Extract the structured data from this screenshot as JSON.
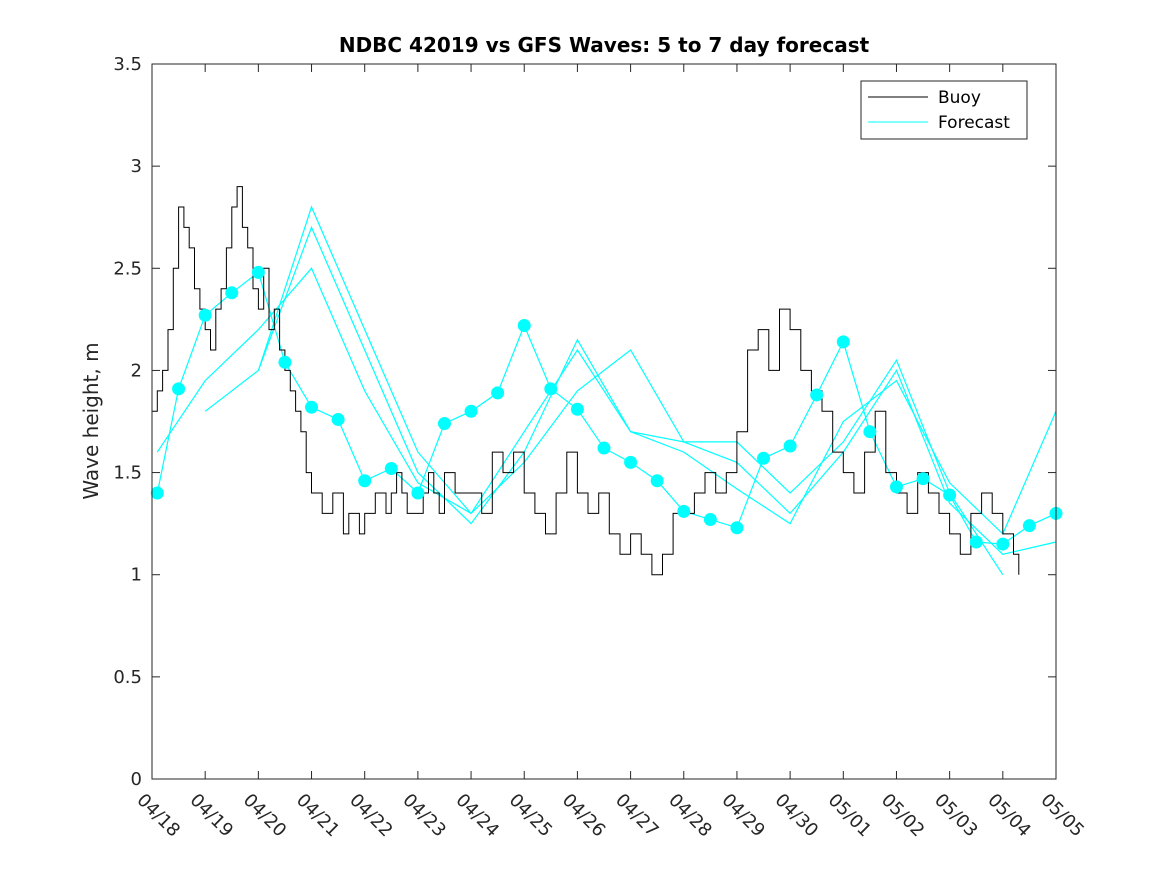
{
  "chart_data": {
    "type": "line",
    "title": "NDBC 42019 vs GFS Waves: 5 to 7 day forecast",
    "xlabel": "",
    "ylabel": "Wave height, m",
    "xlim": [
      0,
      17
    ],
    "ylim": [
      0,
      3.5
    ],
    "x_ticks": [
      "04/18",
      "04/19",
      "04/20",
      "04/21",
      "04/22",
      "04/23",
      "04/24",
      "04/25",
      "04/26",
      "04/27",
      "04/28",
      "04/29",
      "04/30",
      "05/01",
      "05/02",
      "05/03",
      "05/04",
      "05/05"
    ],
    "y_ticks": [
      0,
      0.5,
      1,
      1.5,
      2,
      2.5,
      3,
      3.5
    ],
    "y_tick_labels": [
      "0",
      "0.5",
      "1",
      "1.5",
      "2",
      "2.5",
      "3",
      "3.5"
    ],
    "grid": false,
    "legend": {
      "placement": "top-right",
      "entries": [
        "Buoy",
        "Forecast"
      ]
    },
    "colors": {
      "buoy": "#000000",
      "forecast": "#00ffff",
      "markers": "#00ffff"
    },
    "series": [
      {
        "name": "Buoy",
        "x": [
          0,
          0.1,
          0.2,
          0.3,
          0.4,
          0.5,
          0.6,
          0.7,
          0.8,
          0.9,
          1.0,
          1.1,
          1.2,
          1.3,
          1.4,
          1.5,
          1.6,
          1.7,
          1.8,
          1.9,
          2.0,
          2.1,
          2.2,
          2.3,
          2.4,
          2.5,
          2.6,
          2.7,
          2.8,
          2.9,
          3.0,
          3.1,
          3.2,
          3.3,
          3.4,
          3.5,
          3.6,
          3.7,
          3.8,
          3.9,
          4.0,
          4.1,
          4.2,
          4.3,
          4.4,
          4.5,
          4.6,
          4.7,
          4.8,
          4.9,
          5.0,
          5.1,
          5.2,
          5.3,
          5.4,
          5.5,
          5.6,
          5.7,
          5.8,
          5.9,
          6.0,
          6.2,
          6.4,
          6.6,
          6.8,
          7.0,
          7.2,
          7.4,
          7.6,
          7.8,
          8.0,
          8.2,
          8.4,
          8.6,
          8.8,
          9.0,
          9.2,
          9.4,
          9.6,
          9.8,
          10.0,
          10.2,
          10.4,
          10.6,
          10.8,
          11.0,
          11.2,
          11.4,
          11.6,
          11.8,
          12.0,
          12.2,
          12.4,
          12.6,
          12.8,
          13.0,
          13.2,
          13.4,
          13.6,
          13.8,
          14.0,
          14.2,
          14.4,
          14.6,
          14.8,
          15.0,
          15.2,
          15.4,
          15.6,
          15.8,
          16.0,
          16.2,
          16.3
        ],
        "values": [
          1.8,
          1.9,
          2.0,
          2.2,
          2.5,
          2.8,
          2.7,
          2.6,
          2.4,
          2.3,
          2.2,
          2.1,
          2.3,
          2.4,
          2.6,
          2.8,
          2.9,
          2.7,
          2.6,
          2.4,
          2.3,
          2.5,
          2.2,
          2.3,
          2.1,
          2.0,
          1.9,
          1.8,
          1.7,
          1.5,
          1.4,
          1.4,
          1.3,
          1.3,
          1.4,
          1.4,
          1.2,
          1.3,
          1.3,
          1.2,
          1.3,
          1.3,
          1.4,
          1.4,
          1.3,
          1.4,
          1.5,
          1.4,
          1.3,
          1.3,
          1.3,
          1.4,
          1.5,
          1.4,
          1.3,
          1.5,
          1.5,
          1.4,
          1.4,
          1.4,
          1.4,
          1.3,
          1.6,
          1.5,
          1.6,
          1.4,
          1.3,
          1.2,
          1.4,
          1.6,
          1.4,
          1.3,
          1.4,
          1.2,
          1.1,
          1.2,
          1.1,
          1.0,
          1.1,
          1.3,
          1.3,
          1.4,
          1.5,
          1.4,
          1.5,
          1.7,
          2.1,
          2.2,
          2.0,
          2.3,
          2.2,
          2.0,
          1.9,
          1.8,
          1.6,
          1.5,
          1.4,
          1.6,
          1.8,
          1.5,
          1.4,
          1.3,
          1.5,
          1.4,
          1.3,
          1.2,
          1.1,
          1.3,
          1.4,
          1.3,
          1.2,
          1.1,
          1.0
        ]
      },
      {
        "name": "Forecast",
        "x": [
          0.1,
          0.5,
          1.0,
          1.5,
          2.0,
          2.5,
          3.0,
          3.5,
          4.0,
          4.5,
          5.0,
          5.5,
          6.0,
          6.5,
          7.0,
          7.5,
          8.0,
          8.5,
          9.0,
          9.5,
          10.0,
          10.5,
          11.0,
          11.5,
          12.0,
          12.5,
          13.0,
          13.5,
          14.0,
          14.5,
          15.0,
          15.5,
          16.0,
          16.5,
          17.0
        ],
        "values": [
          1.4,
          1.91,
          2.27,
          2.38,
          2.48,
          2.04,
          1.82,
          1.76,
          1.46,
          1.52,
          1.4,
          1.74,
          1.8,
          1.89,
          2.22,
          1.91,
          1.81,
          1.62,
          1.55,
          1.46,
          1.31,
          1.27,
          1.23,
          1.57,
          1.63,
          1.88,
          2.14,
          1.7,
          1.43,
          1.47,
          1.39,
          1.16,
          1.15,
          1.24,
          1.3
        ]
      },
      {
        "x": [
          0.1,
          1.0,
          2.0,
          3.0,
          4.0,
          5.0,
          6.0,
          7.0,
          8.0,
          9.0,
          10.0,
          11.0,
          12.0,
          13.0,
          14.0,
          15.0,
          16.0,
          17.0
        ],
        "values": [
          1.6,
          1.95,
          2.2,
          2.5,
          1.9,
          1.45,
          1.3,
          1.7,
          2.1,
          1.7,
          1.6,
          1.42,
          1.25,
          1.75,
          1.95,
          1.45,
          1.2,
          1.8
        ]
      },
      {
        "x": [
          1.0,
          2.0,
          3.0,
          4.0,
          5.0,
          6.0,
          7.0,
          8.0,
          9.0,
          10.0,
          11.0,
          12.0,
          13.0,
          14.0,
          15.0,
          16.0,
          17.0
        ],
        "values": [
          1.8,
          2.0,
          2.7,
          2.1,
          1.5,
          1.25,
          1.6,
          2.15,
          1.7,
          1.65,
          1.55,
          1.3,
          1.6,
          2.0,
          1.35,
          1.1,
          1.16
        ]
      },
      {
        "x": [
          2.0,
          3.0,
          4.0,
          5.0,
          6.0,
          7.0,
          8.0,
          9.0,
          10.0,
          11.0,
          12.0,
          13.0,
          14.0,
          15.0,
          16.0
        ],
        "values": [
          2.0,
          2.8,
          2.2,
          1.6,
          1.3,
          1.55,
          1.9,
          2.1,
          1.65,
          1.65,
          1.4,
          1.65,
          2.05,
          1.4,
          1.0
        ]
      }
    ]
  }
}
